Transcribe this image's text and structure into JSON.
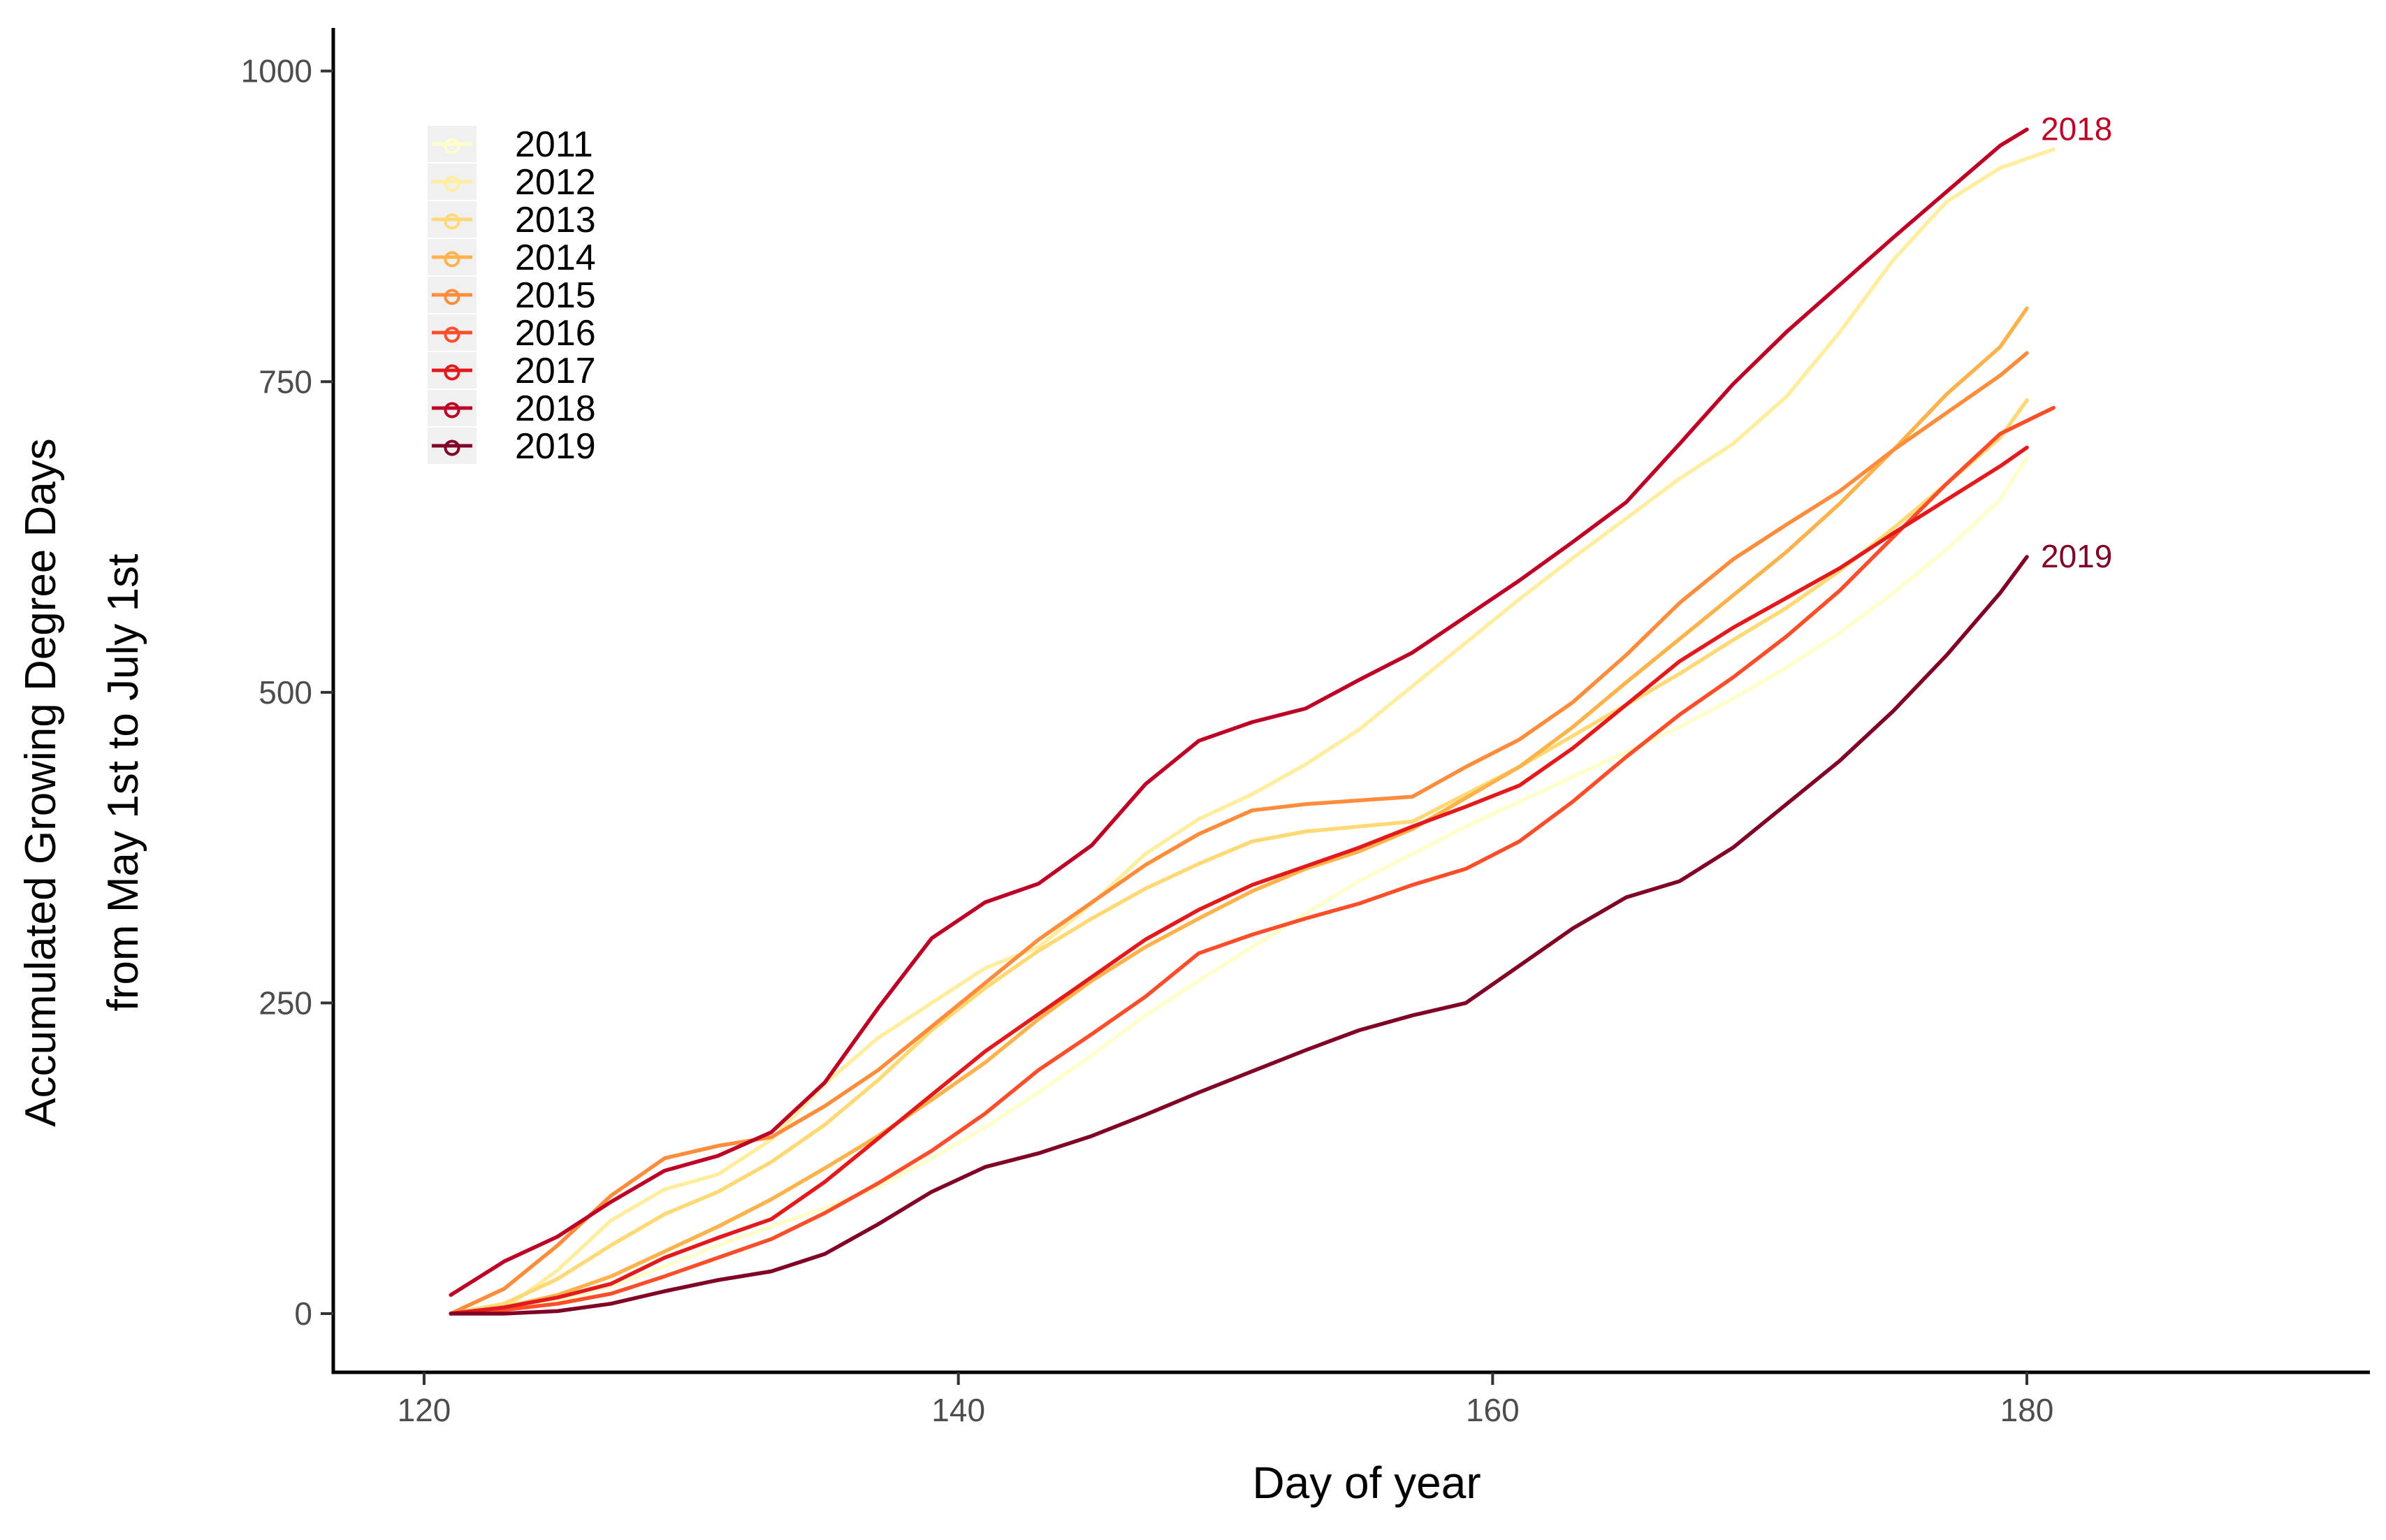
{
  "figure": {
    "y_axis_title_line1": "Accumulated Growing Degree Days",
    "y_axis_title_line2": "from May 1st to July 1st",
    "x_axis_title": "Day of year"
  },
  "axes": {
    "x": {
      "label": "Day of year",
      "ticks": [
        120,
        140,
        160,
        180
      ],
      "range": [
        116.6,
        192.8
      ]
    },
    "y": {
      "label": "Accumulated Growing Degree Days from May 1st to July 1st",
      "ticks": [
        0,
        250,
        500,
        750,
        1000
      ],
      "range": [
        -47,
        1035
      ]
    }
  },
  "legend": {
    "position": "top-left-inside",
    "key_background": "#f0f0f0",
    "entries": [
      {
        "label": "2011",
        "color": "#ffffcc"
      },
      {
        "label": "2012",
        "color": "#ffeda0"
      },
      {
        "label": "2013",
        "color": "#fed976"
      },
      {
        "label": "2014",
        "color": "#feb24c"
      },
      {
        "label": "2015",
        "color": "#fd8d3c"
      },
      {
        "label": "2016",
        "color": "#fc4e2a"
      },
      {
        "label": "2017",
        "color": "#e31a1c"
      },
      {
        "label": "2018",
        "color": "#bd0026"
      },
      {
        "label": "2019",
        "color": "#800026"
      }
    ]
  },
  "annotations": [
    {
      "text": "2018",
      "series": "2018",
      "color": "#bd0026"
    },
    {
      "text": "2019",
      "series": "2019",
      "color": "#800026"
    }
  ],
  "chart_data": {
    "type": "line",
    "title": "",
    "xlabel": "Day of year",
    "ylabel": "Accumulated Growing Degree Days from May 1st to July 1st",
    "xlim": [
      116.6,
      192.8
    ],
    "ylim": [
      -47,
      1035
    ],
    "grid": false,
    "series": [
      {
        "name": "2011",
        "color": "#ffffcc",
        "points": [
          [
            121,
            0
          ],
          [
            123,
            3
          ],
          [
            125,
            10
          ],
          [
            127,
            22
          ],
          [
            129,
            38
          ],
          [
            131,
            55
          ],
          [
            133,
            70
          ],
          [
            135,
            85
          ],
          [
            137,
            102
          ],
          [
            139,
            125
          ],
          [
            141,
            150
          ],
          [
            143,
            178
          ],
          [
            145,
            208
          ],
          [
            147,
            240
          ],
          [
            149,
            268
          ],
          [
            151,
            295
          ],
          [
            153,
            322
          ],
          [
            155,
            348
          ],
          [
            157,
            370
          ],
          [
            159,
            392
          ],
          [
            161,
            412
          ],
          [
            163,
            432
          ],
          [
            165,
            452
          ],
          [
            167,
            472
          ],
          [
            169,
            495
          ],
          [
            171,
            520
          ],
          [
            173,
            548
          ],
          [
            175,
            580
          ],
          [
            177,
            615
          ],
          [
            179,
            655
          ],
          [
            180,
            689
          ]
        ]
      },
      {
        "name": "2012",
        "color": "#ffeda0",
        "points": [
          [
            121,
            0
          ],
          [
            123,
            4
          ],
          [
            125,
            35
          ],
          [
            127,
            75
          ],
          [
            129,
            100
          ],
          [
            131,
            112
          ],
          [
            133,
            140
          ],
          [
            135,
            185
          ],
          [
            137,
            222
          ],
          [
            139,
            250
          ],
          [
            141,
            278
          ],
          [
            143,
            295
          ],
          [
            145,
            330
          ],
          [
            147,
            370
          ],
          [
            149,
            398
          ],
          [
            151,
            418
          ],
          [
            153,
            442
          ],
          [
            155,
            470
          ],
          [
            157,
            505
          ],
          [
            159,
            540
          ],
          [
            161,
            575
          ],
          [
            163,
            608
          ],
          [
            165,
            640
          ],
          [
            167,
            672
          ],
          [
            169,
            700
          ],
          [
            171,
            738
          ],
          [
            173,
            790
          ],
          [
            175,
            848
          ],
          [
            177,
            895
          ],
          [
            179,
            922
          ],
          [
            181,
            937
          ]
        ]
      },
      {
        "name": "2013",
        "color": "#fed976",
        "points": [
          [
            121,
            0
          ],
          [
            123,
            8
          ],
          [
            125,
            28
          ],
          [
            127,
            55
          ],
          [
            129,
            80
          ],
          [
            131,
            98
          ],
          [
            133,
            122
          ],
          [
            135,
            152
          ],
          [
            137,
            188
          ],
          [
            139,
            228
          ],
          [
            141,
            262
          ],
          [
            143,
            292
          ],
          [
            145,
            318
          ],
          [
            147,
            342
          ],
          [
            149,
            362
          ],
          [
            151,
            380
          ],
          [
            153,
            388
          ],
          [
            155,
            392
          ],
          [
            157,
            396
          ],
          [
            159,
            418
          ],
          [
            161,
            440
          ],
          [
            163,
            465
          ],
          [
            165,
            490
          ],
          [
            167,
            515
          ],
          [
            169,
            542
          ],
          [
            171,
            568
          ],
          [
            173,
            598
          ],
          [
            175,
            632
          ],
          [
            177,
            668
          ],
          [
            179,
            705
          ],
          [
            180,
            735
          ]
        ]
      },
      {
        "name": "2014",
        "color": "#feb24c",
        "points": [
          [
            121,
            0
          ],
          [
            123,
            5
          ],
          [
            125,
            15
          ],
          [
            127,
            30
          ],
          [
            129,
            50
          ],
          [
            131,
            70
          ],
          [
            133,
            92
          ],
          [
            135,
            117
          ],
          [
            137,
            143
          ],
          [
            139,
            172
          ],
          [
            141,
            202
          ],
          [
            143,
            237
          ],
          [
            145,
            268
          ],
          [
            147,
            295
          ],
          [
            149,
            318
          ],
          [
            151,
            340
          ],
          [
            153,
            358
          ],
          [
            155,
            372
          ],
          [
            157,
            390
          ],
          [
            159,
            415
          ],
          [
            161,
            440
          ],
          [
            163,
            472
          ],
          [
            165,
            508
          ],
          [
            167,
            543
          ],
          [
            169,
            578
          ],
          [
            171,
            613
          ],
          [
            173,
            652
          ],
          [
            175,
            695
          ],
          [
            177,
            740
          ],
          [
            179,
            778
          ],
          [
            180,
            809
          ]
        ]
      },
      {
        "name": "2015",
        "color": "#fd8d3c",
        "points": [
          [
            121,
            0
          ],
          [
            123,
            20
          ],
          [
            125,
            55
          ],
          [
            127,
            95
          ],
          [
            129,
            125
          ],
          [
            131,
            135
          ],
          [
            133,
            142
          ],
          [
            135,
            167
          ],
          [
            137,
            196
          ],
          [
            139,
            231
          ],
          [
            141,
            266
          ],
          [
            143,
            301
          ],
          [
            145,
            331
          ],
          [
            147,
            361
          ],
          [
            149,
            386
          ],
          [
            151,
            405
          ],
          [
            153,
            410
          ],
          [
            155,
            413
          ],
          [
            157,
            416
          ],
          [
            159,
            440
          ],
          [
            161,
            462
          ],
          [
            163,
            492
          ],
          [
            165,
            530
          ],
          [
            167,
            572
          ],
          [
            169,
            607
          ],
          [
            171,
            635
          ],
          [
            173,
            662
          ],
          [
            175,
            695
          ],
          [
            177,
            725
          ],
          [
            179,
            755
          ],
          [
            180,
            773
          ]
        ]
      },
      {
        "name": "2016",
        "color": "#fc4e2a",
        "points": [
          [
            121,
            0
          ],
          [
            123,
            3
          ],
          [
            125,
            8
          ],
          [
            127,
            16
          ],
          [
            129,
            30
          ],
          [
            131,
            45
          ],
          [
            133,
            60
          ],
          [
            135,
            81
          ],
          [
            137,
            105
          ],
          [
            139,
            131
          ],
          [
            141,
            161
          ],
          [
            143,
            196
          ],
          [
            145,
            225
          ],
          [
            147,
            255
          ],
          [
            149,
            290
          ],
          [
            151,
            305
          ],
          [
            153,
            318
          ],
          [
            155,
            330
          ],
          [
            157,
            345
          ],
          [
            159,
            358
          ],
          [
            161,
            380
          ],
          [
            163,
            412
          ],
          [
            165,
            448
          ],
          [
            167,
            482
          ],
          [
            169,
            512
          ],
          [
            171,
            545
          ],
          [
            173,
            582
          ],
          [
            175,
            625
          ],
          [
            177,
            668
          ],
          [
            179,
            708
          ],
          [
            181,
            729
          ]
        ]
      },
      {
        "name": "2017",
        "color": "#e31a1c",
        "points": [
          [
            121,
            0
          ],
          [
            123,
            5
          ],
          [
            125,
            13
          ],
          [
            127,
            24
          ],
          [
            129,
            45
          ],
          [
            131,
            61
          ],
          [
            133,
            76
          ],
          [
            135,
            106
          ],
          [
            137,
            141
          ],
          [
            139,
            176
          ],
          [
            141,
            211
          ],
          [
            143,
            241
          ],
          [
            145,
            271
          ],
          [
            147,
            301
          ],
          [
            149,
            325
          ],
          [
            151,
            345
          ],
          [
            153,
            360
          ],
          [
            155,
            375
          ],
          [
            157,
            392
          ],
          [
            159,
            408
          ],
          [
            161,
            425
          ],
          [
            163,
            455
          ],
          [
            165,
            490
          ],
          [
            167,
            525
          ],
          [
            169,
            552
          ],
          [
            171,
            576
          ],
          [
            173,
            600
          ],
          [
            175,
            628
          ],
          [
            177,
            655
          ],
          [
            179,
            682
          ],
          [
            180,
            697
          ]
        ]
      },
      {
        "name": "2018",
        "color": "#bd0026",
        "points": [
          [
            121,
            15
          ],
          [
            123,
            42
          ],
          [
            125,
            62
          ],
          [
            127,
            90
          ],
          [
            129,
            115
          ],
          [
            131,
            127
          ],
          [
            133,
            146
          ],
          [
            135,
            186
          ],
          [
            137,
            246
          ],
          [
            139,
            302
          ],
          [
            141,
            331
          ],
          [
            143,
            346
          ],
          [
            145,
            377
          ],
          [
            147,
            426
          ],
          [
            149,
            461
          ],
          [
            151,
            476
          ],
          [
            153,
            487
          ],
          [
            155,
            510
          ],
          [
            157,
            532
          ],
          [
            159,
            561
          ],
          [
            161,
            590
          ],
          [
            163,
            621
          ],
          [
            165,
            653
          ],
          [
            167,
            700
          ],
          [
            169,
            748
          ],
          [
            171,
            790
          ],
          [
            173,
            828
          ],
          [
            175,
            866
          ],
          [
            177,
            903
          ],
          [
            179,
            940
          ],
          [
            180,
            953
          ]
        ]
      },
      {
        "name": "2019",
        "color": "#800026",
        "points": [
          [
            121,
            0
          ],
          [
            123,
            0
          ],
          [
            125,
            2
          ],
          [
            127,
            8
          ],
          [
            129,
            18
          ],
          [
            131,
            27
          ],
          [
            133,
            34
          ],
          [
            135,
            48
          ],
          [
            137,
            72
          ],
          [
            139,
            98
          ],
          [
            141,
            118
          ],
          [
            143,
            129
          ],
          [
            145,
            143
          ],
          [
            147,
            160
          ],
          [
            149,
            178
          ],
          [
            151,
            195
          ],
          [
            153,
            212
          ],
          [
            155,
            228
          ],
          [
            157,
            240
          ],
          [
            159,
            250
          ],
          [
            161,
            280
          ],
          [
            163,
            310
          ],
          [
            165,
            335
          ],
          [
            167,
            348
          ],
          [
            169,
            375
          ],
          [
            171,
            410
          ],
          [
            173,
            445
          ],
          [
            175,
            485
          ],
          [
            177,
            530
          ],
          [
            179,
            580
          ],
          [
            180,
            609
          ]
        ]
      }
    ]
  }
}
